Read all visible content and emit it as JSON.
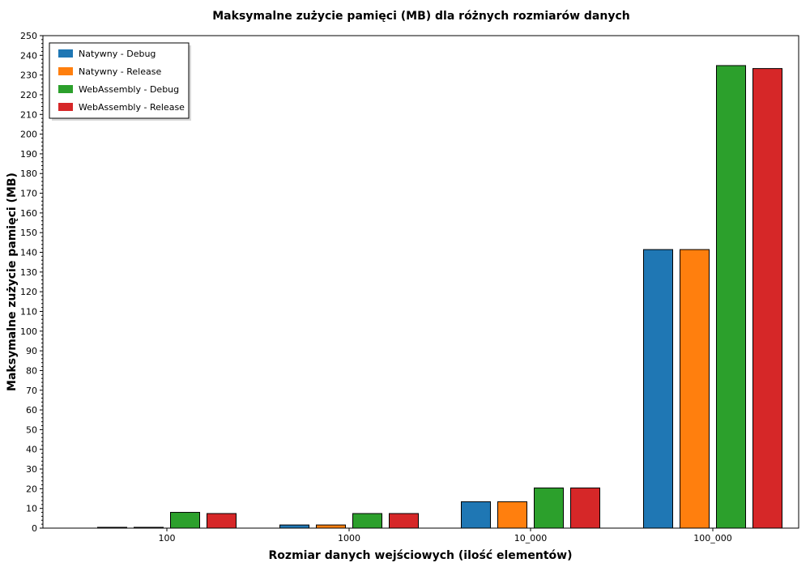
{
  "chart_data": {
    "type": "bar",
    "title": "Maksymalne zużycie pamięci (MB) dla różnych rozmiarów danych",
    "xlabel": "Rozmiar danych wejściowych (ilość elementów)",
    "ylabel": "Maksymalne zużycie pamięci (MB)",
    "categories": [
      "100",
      "1000",
      "10_000",
      "100_000"
    ],
    "ylim": [
      0,
      250
    ],
    "y_ticks": [
      0,
      10,
      20,
      30,
      40,
      50,
      60,
      70,
      80,
      90,
      100,
      110,
      120,
      130,
      140,
      150,
      160,
      170,
      180,
      190,
      200,
      210,
      220,
      230,
      240,
      250
    ],
    "grid": false,
    "legend_position": "top-left",
    "series": [
      {
        "name": "Natywny - Debug",
        "color": "#1f77b4",
        "values": [
          0.3,
          1.6,
          13.4,
          141.4
        ]
      },
      {
        "name": "Natywny - Release",
        "color": "#ff7f0e",
        "values": [
          0.3,
          1.6,
          13.4,
          141.4
        ]
      },
      {
        "name": "WebAssembly - Debug",
        "color": "#2ca02c",
        "values": [
          8.0,
          7.4,
          20.4,
          234.8
        ]
      },
      {
        "name": "WebAssembly - Release",
        "color": "#d62728",
        "values": [
          7.4,
          7.4,
          20.4,
          233.3
        ]
      }
    ]
  }
}
